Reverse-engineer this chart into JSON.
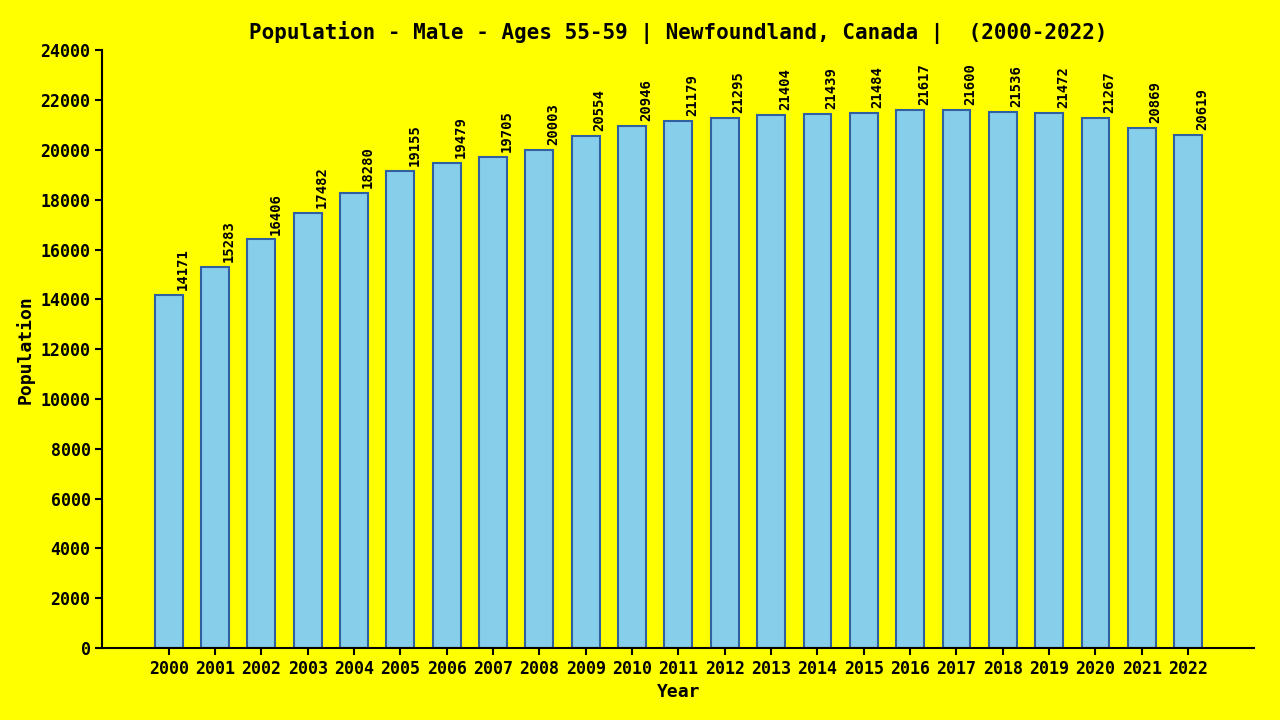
{
  "title": "Population - Male - Ages 55-59 | Newfoundland, Canada |  (2000-2022)",
  "xlabel": "Year",
  "ylabel": "Population",
  "background_color": "#FFFF00",
  "bar_color": "#87CEEB",
  "bar_edge_color": "#3060A0",
  "years": [
    2000,
    2001,
    2002,
    2003,
    2004,
    2005,
    2006,
    2007,
    2008,
    2009,
    2010,
    2011,
    2012,
    2013,
    2014,
    2015,
    2016,
    2017,
    2018,
    2019,
    2020,
    2021,
    2022
  ],
  "values": [
    14171,
    15283,
    16406,
    17482,
    18280,
    19155,
    19479,
    19705,
    20003,
    20554,
    20946,
    21179,
    21295,
    21404,
    21439,
    21484,
    21617,
    21600,
    21536,
    21472,
    21267,
    20869,
    20619
  ],
  "ylim": [
    0,
    24000
  ],
  "yticks": [
    0,
    2000,
    4000,
    6000,
    8000,
    10000,
    12000,
    14000,
    16000,
    18000,
    20000,
    22000,
    24000
  ],
  "title_color": "#000000",
  "label_color": "#000000",
  "tick_color": "#000000",
  "title_fontsize": 15,
  "label_fontsize": 13,
  "tick_fontsize": 12,
  "bar_label_fontsize": 10,
  "bar_width": 0.6
}
